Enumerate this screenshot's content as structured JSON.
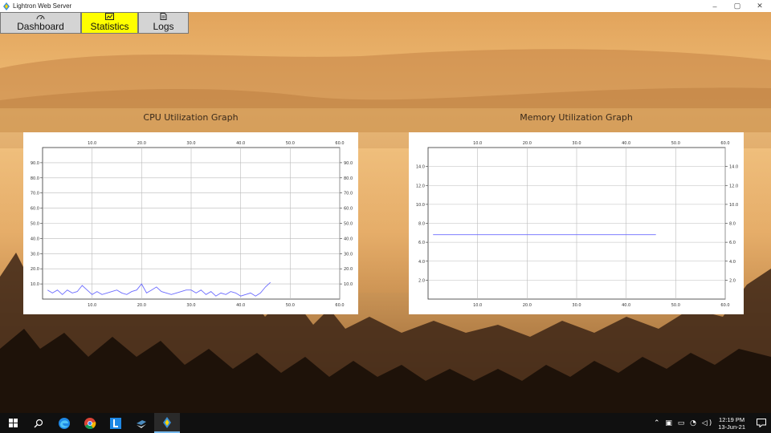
{
  "window": {
    "title": "Lightron Web Server",
    "controls": [
      "–",
      "▢",
      "✕"
    ]
  },
  "tabs": [
    {
      "label": "Dashboard",
      "icon": "gauge-icon",
      "active": false
    },
    {
      "label": "Statistics",
      "icon": "chart-icon",
      "active": true
    },
    {
      "label": "Logs",
      "icon": "document-icon",
      "active": false
    }
  ],
  "cpu_graph": {
    "title": "CPU Utilization Graph"
  },
  "memory_graph": {
    "title": "Memory Utilization Graph"
  },
  "chart_data": [
    {
      "type": "line",
      "title": "CPU Utilization Graph",
      "xlim": [
        0,
        60
      ],
      "ylim": [
        0,
        100
      ],
      "xticks": [
        "10.0",
        "20.0",
        "30.0",
        "40.0",
        "50.0",
        "60.0"
      ],
      "yticks": [
        "10.0",
        "20.0",
        "30.0",
        "40.0",
        "50.0",
        "60.0",
        "70.0",
        "80.0",
        "90.0"
      ],
      "grid": true,
      "color": "#6b6bff",
      "x": [
        1,
        2,
        3,
        4,
        5,
        6,
        7,
        8,
        9,
        10,
        11,
        12,
        13,
        14,
        15,
        16,
        17,
        18,
        19,
        20,
        21,
        22,
        23,
        24,
        25,
        26,
        27,
        28,
        29,
        30,
        31,
        32,
        33,
        34,
        35,
        36,
        37,
        38,
        39,
        40,
        41,
        42,
        43,
        44,
        45,
        46
      ],
      "y": [
        6,
        4,
        6,
        3,
        6,
        4,
        5,
        9,
        6,
        3,
        5,
        3,
        4,
        5,
        6,
        4,
        3,
        5,
        6,
        10,
        4,
        6,
        8,
        5,
        4,
        3,
        4,
        5,
        6,
        6,
        4,
        6,
        3,
        5,
        2,
        4,
        3,
        5,
        4,
        2,
        3,
        4,
        2,
        4,
        8,
        11
      ]
    },
    {
      "type": "line",
      "title": "Memory Utilization Graph",
      "xlim": [
        0,
        60
      ],
      "ylim": [
        0,
        16
      ],
      "xticks": [
        "10.0",
        "20.0",
        "30.0",
        "40.0",
        "50.0",
        "60.0"
      ],
      "yticks": [
        "2.0",
        "4.0",
        "6.0",
        "8.0",
        "10.0",
        "12.0",
        "14.0"
      ],
      "grid": true,
      "color": "#6b6bff",
      "x": [
        1,
        46
      ],
      "y": [
        6.8,
        6.8
      ]
    }
  ],
  "taskbar": {
    "apps": [
      "windows-start-icon",
      "search-icon",
      "edge-icon",
      "chrome-icon",
      "l-app-icon",
      "python-icon",
      "lightron-icon"
    ],
    "tray": "⌃ ▣ ▭ ◔ ◁)",
    "time": "12:19 PM",
    "date": "13-Jun-21"
  }
}
